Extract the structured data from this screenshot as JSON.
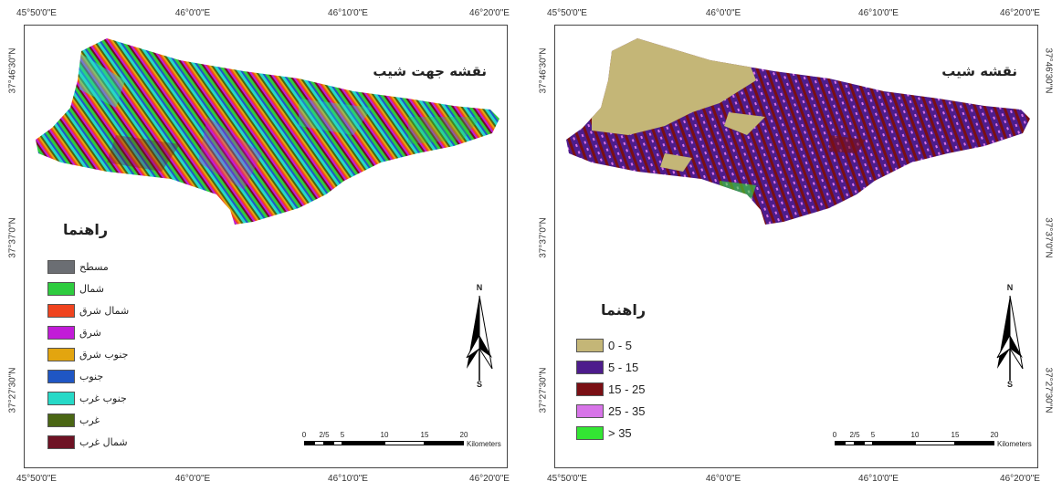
{
  "left_map": {
    "title": "نقشه جهت شیب",
    "legend_title": "راهنما",
    "legend": [
      {
        "label": "مسطح",
        "color": "#6b6e73"
      },
      {
        "label": "شمال",
        "color": "#2ecc3f"
      },
      {
        "label": "شمال شرق",
        "color": "#f0441f"
      },
      {
        "label": "شرق",
        "color": "#c21bd8"
      },
      {
        "label": "جنوب شرق",
        "color": "#e3a50f"
      },
      {
        "label": "جنوب",
        "color": "#1f56c4"
      },
      {
        "label": "جنوب غرب",
        "color": "#26d9c7"
      },
      {
        "label": "غرب",
        "color": "#4a6614"
      },
      {
        "label": "شمال غرب",
        "color": "#6e1224"
      }
    ],
    "north_n": "N",
    "north_s": "S",
    "scale": {
      "labels": [
        "0",
        "2/5",
        "5",
        "10",
        "15",
        "20"
      ],
      "unit": "Kilometers"
    }
  },
  "right_map": {
    "title": "نقشه شیب",
    "legend_title": "راهنما",
    "legend": [
      {
        "label": "0 - 5",
        "color": "#c4b677"
      },
      {
        "label": "5 - 15",
        "color": "#4d1c8c"
      },
      {
        "label": "15 - 25",
        "color": "#7a0f14"
      },
      {
        "label": "25 - 35",
        "color": "#d774e8"
      },
      {
        "label": "> 35",
        "color": "#33e633"
      }
    ],
    "north_n": "N",
    "north_s": "S",
    "scale": {
      "labels": [
        "0",
        "2/5",
        "5",
        "10",
        "15",
        "20"
      ],
      "unit": "Kilometers"
    }
  },
  "axes": {
    "x_ticks": [
      "45°50'0\"E",
      "46°0'0\"E",
      "46°10'0\"E",
      "46°20'0\"E"
    ],
    "y_ticks": [
      "37°46'30\"N",
      "37°37'0\"N",
      "37°27'30\"N"
    ]
  }
}
